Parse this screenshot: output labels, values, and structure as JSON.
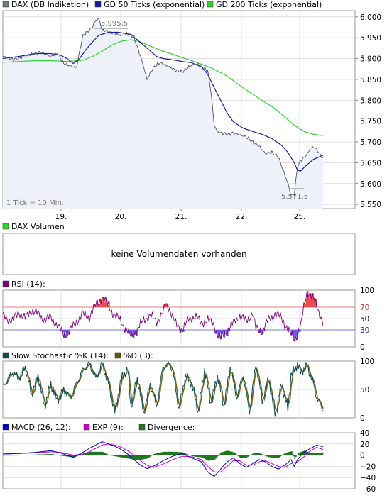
{
  "chart_data": [
    {
      "type": "line",
      "legend": [
        {
          "label": "DAX (DB Indikation)",
          "color": "#6b7a86"
        },
        {
          "label": "GD 50 Ticks (exponential)",
          "color": "#1a1aa6"
        },
        {
          "label": "GD 200 Ticks (exponential)",
          "color": "#2fd42f"
        }
      ],
      "x_ticks": [
        "19.",
        "20.",
        "21.",
        "22.",
        "25."
      ],
      "y_ticks": [
        "6.000",
        "5.950",
        "5.900",
        "5.850",
        "5.800",
        "5.750",
        "5.700",
        "5.650",
        "5.600",
        "5.550"
      ],
      "ylim": [
        5540,
        6015
      ],
      "annotations": {
        "high": "5.995,5",
        "low": "5.571,5",
        "note": "1 Tick = 10 Min."
      },
      "series": [
        {
          "name": "DAX (DB Indikation)",
          "x": [
            0,
            0.03,
            0.06,
            0.09,
            0.12,
            0.15,
            0.17,
            0.19,
            0.21,
            0.23,
            0.24,
            0.25,
            0.26,
            0.27,
            0.28,
            0.29,
            0.3,
            0.31,
            0.33,
            0.35,
            0.37,
            0.39,
            0.41,
            0.43,
            0.44,
            0.45,
            0.46,
            0.47,
            0.48,
            0.49,
            0.5,
            0.52,
            0.54,
            0.56,
            0.58,
            0.6,
            0.62,
            0.64,
            0.65,
            0.66,
            0.67,
            0.68,
            0.69,
            0.7,
            0.72,
            0.74,
            0.76,
            0.78,
            0.8,
            0.82,
            0.84,
            0.86,
            0.88,
            0.89,
            0.9,
            0.91,
            0.92,
            0.93,
            0.94,
            0.95,
            0.96,
            0.97,
            0.98,
            0.99,
            1.0
          ],
          "values": [
            5905,
            5898,
            5902,
            5910,
            5915,
            5905,
            5913,
            5888,
            5883,
            5878,
            5918,
            5955,
            5962,
            5968,
            5976,
            5992,
            5995,
            5968,
            5965,
            5960,
            5955,
            5960,
            5950,
            5905,
            5880,
            5850,
            5865,
            5878,
            5885,
            5890,
            5887,
            5880,
            5872,
            5868,
            5880,
            5888,
            5882,
            5870,
            5820,
            5740,
            5725,
            5722,
            5720,
            5718,
            5722,
            5717,
            5712,
            5700,
            5690,
            5672,
            5675,
            5664,
            5622,
            5600,
            5572,
            5575,
            5640,
            5655,
            5662,
            5670,
            5685,
            5688,
            5682,
            5670,
            5660
          ]
        },
        {
          "name": "GD 50 Ticks (exponential)",
          "x": [
            0,
            0.05,
            0.1,
            0.15,
            0.18,
            0.2,
            0.22,
            0.24,
            0.26,
            0.28,
            0.3,
            0.33,
            0.36,
            0.4,
            0.44,
            0.48,
            0.5,
            0.53,
            0.56,
            0.59,
            0.62,
            0.64,
            0.66,
            0.68,
            0.7,
            0.72,
            0.75,
            0.78,
            0.81,
            0.84,
            0.87,
            0.89,
            0.91,
            0.92,
            0.93,
            0.94,
            0.95,
            0.97,
            1.0
          ],
          "values": [
            5900,
            5905,
            5912,
            5912,
            5908,
            5900,
            5888,
            5900,
            5922,
            5940,
            5956,
            5963,
            5963,
            5958,
            5932,
            5905,
            5900,
            5897,
            5893,
            5890,
            5880,
            5862,
            5830,
            5800,
            5770,
            5748,
            5733,
            5725,
            5718,
            5708,
            5692,
            5675,
            5650,
            5632,
            5630,
            5638,
            5645,
            5658,
            5668
          ]
        },
        {
          "name": "GD 200 Ticks (exponential)",
          "x": [
            0,
            0.05,
            0.1,
            0.15,
            0.2,
            0.25,
            0.28,
            0.31,
            0.34,
            0.37,
            0.4,
            0.43,
            0.46,
            0.5,
            0.55,
            0.6,
            0.65,
            0.7,
            0.75,
            0.8,
            0.85,
            0.88,
            0.91,
            0.94,
            0.97,
            1.0
          ],
          "values": [
            5891,
            5893,
            5895,
            5895,
            5893,
            5896,
            5905,
            5918,
            5932,
            5942,
            5945,
            5940,
            5930,
            5918,
            5905,
            5892,
            5878,
            5858,
            5830,
            5804,
            5780,
            5760,
            5740,
            5725,
            5718,
            5715
          ]
        }
      ]
    },
    {
      "type": "area",
      "legend": [
        {
          "label": "DAX Volumen",
          "color": "#2fd42f"
        }
      ],
      "message": "keine Volumendaten vorhanden"
    },
    {
      "type": "line",
      "legend": [
        {
          "label": "RSI (14):",
          "color": "#800080"
        }
      ],
      "y_ticks": [
        "100",
        "70",
        "50",
        "30",
        "0"
      ],
      "ylim": [
        0,
        100
      ],
      "reference_lines": [
        70,
        30
      ],
      "series": [
        {
          "name": "RSI (14):",
          "x": [
            0,
            0.03,
            0.05,
            0.07,
            0.09,
            0.11,
            0.13,
            0.15,
            0.17,
            0.19,
            0.21,
            0.23,
            0.25,
            0.27,
            0.28,
            0.3,
            0.31,
            0.33,
            0.35,
            0.37,
            0.38,
            0.4,
            0.42,
            0.44,
            0.46,
            0.48,
            0.5,
            0.51,
            0.52,
            0.54,
            0.56,
            0.58,
            0.6,
            0.62,
            0.64,
            0.66,
            0.67,
            0.68,
            0.7,
            0.72,
            0.74,
            0.76,
            0.78,
            0.79,
            0.81,
            0.83,
            0.85,
            0.87,
            0.88,
            0.9,
            0.91,
            0.93,
            0.94,
            0.95,
            0.96,
            0.98,
            1.0
          ],
          "values": [
            55,
            45,
            62,
            50,
            65,
            58,
            48,
            52,
            38,
            22,
            28,
            45,
            58,
            52,
            65,
            80,
            88,
            72,
            55,
            45,
            35,
            18,
            30,
            48,
            55,
            45,
            60,
            75,
            68,
            40,
            30,
            48,
            55,
            42,
            48,
            38,
            20,
            15,
            28,
            42,
            55,
            45,
            60,
            32,
            28,
            48,
            58,
            52,
            40,
            22,
            15,
            35,
            70,
            98,
            92,
            75,
            40
          ]
        }
      ]
    },
    {
      "type": "line",
      "legend": [
        {
          "label": "Slow Stochastic %K (14):",
          "color": "#0d4e53"
        },
        {
          "label": "%D (3):",
          "color": "#5b5b10"
        }
      ],
      "y_ticks": [
        "100",
        "50",
        "0"
      ],
      "ylim": [
        0,
        100
      ],
      "series": [
        {
          "name": "Slow Stochastic %K (14):",
          "x": [
            0,
            0.03,
            0.05,
            0.07,
            0.09,
            0.11,
            0.13,
            0.15,
            0.17,
            0.19,
            0.21,
            0.23,
            0.25,
            0.27,
            0.29,
            0.31,
            0.33,
            0.35,
            0.37,
            0.39,
            0.4,
            0.42,
            0.44,
            0.46,
            0.48,
            0.5,
            0.52,
            0.53,
            0.55,
            0.57,
            0.59,
            0.61,
            0.63,
            0.65,
            0.67,
            0.69,
            0.71,
            0.73,
            0.75,
            0.77,
            0.79,
            0.81,
            0.83,
            0.85,
            0.87,
            0.89,
            0.9,
            0.92,
            0.93,
            0.95,
            0.97,
            0.98,
            1.0
          ],
          "values": [
            55,
            80,
            70,
            90,
            40,
            75,
            20,
            60,
            30,
            50,
            35,
            60,
            85,
            95,
            70,
            95,
            60,
            10,
            70,
            85,
            20,
            70,
            8,
            60,
            20,
            90,
            95,
            85,
            15,
            75,
            60,
            10,
            85,
            25,
            75,
            20,
            90,
            35,
            75,
            10,
            95,
            30,
            70,
            5,
            60,
            15,
            75,
            95,
            80,
            92,
            60,
            35,
            15
          ]
        }
      ]
    },
    {
      "type": "line",
      "legend": [
        {
          "label": "MACD (26, 12):",
          "color": "#0000cc"
        },
        {
          "label": "EXP (9):",
          "color": "#cc00cc"
        },
        {
          "label": "Divergence:",
          "color": "#1a7a1a"
        }
      ],
      "y_ticks": [
        "40",
        "20",
        "0",
        "−20",
        "−40",
        "−60"
      ],
      "ylim": [
        -60,
        40
      ],
      "series": [
        {
          "name": "MACD (26, 12):",
          "x": [
            0,
            0.05,
            0.1,
            0.15,
            0.18,
            0.22,
            0.25,
            0.27,
            0.29,
            0.31,
            0.33,
            0.35,
            0.37,
            0.39,
            0.41,
            0.43,
            0.45,
            0.47,
            0.5,
            0.53,
            0.56,
            0.59,
            0.62,
            0.64,
            0.66,
            0.68,
            0.7,
            0.72,
            0.74,
            0.76,
            0.78,
            0.8,
            0.82,
            0.84,
            0.86,
            0.88,
            0.9,
            0.91,
            0.92,
            0.94,
            0.96,
            0.98,
            1.0
          ],
          "values": [
            2,
            3,
            5,
            8,
            4,
            -4,
            5,
            12,
            18,
            24,
            20,
            16,
            10,
            2,
            -8,
            -18,
            -24,
            -20,
            -10,
            -2,
            3,
            -5,
            -12,
            -30,
            -38,
            -25,
            -12,
            -5,
            -15,
            -22,
            -15,
            -8,
            -12,
            -20,
            -25,
            -18,
            -8,
            -20,
            -8,
            5,
            12,
            18,
            15
          ]
        },
        {
          "name": "EXP (9):",
          "x": [
            0,
            0.05,
            0.1,
            0.15,
            0.18,
            0.22,
            0.25,
            0.27,
            0.29,
            0.31,
            0.33,
            0.35,
            0.37,
            0.39,
            0.41,
            0.43,
            0.45,
            0.47,
            0.5,
            0.53,
            0.56,
            0.59,
            0.62,
            0.64,
            0.66,
            0.68,
            0.7,
            0.72,
            0.74,
            0.76,
            0.78,
            0.8,
            0.82,
            0.84,
            0.86,
            0.88,
            0.9,
            0.92,
            0.94,
            0.96,
            0.98,
            1.0
          ],
          "values": [
            2,
            3,
            4,
            6,
            5,
            0,
            2,
            6,
            12,
            18,
            20,
            18,
            14,
            8,
            0,
            -10,
            -18,
            -22,
            -16,
            -8,
            -2,
            -3,
            -8,
            -20,
            -30,
            -30,
            -20,
            -10,
            -10,
            -18,
            -18,
            -12,
            -10,
            -15,
            -20,
            -22,
            -15,
            -12,
            -3,
            8,
            14,
            10
          ]
        }
      ]
    }
  ]
}
